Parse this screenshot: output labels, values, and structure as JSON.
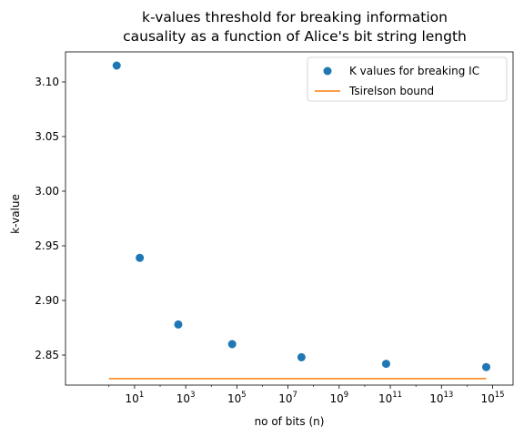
{
  "chart_data": {
    "type": "scatter",
    "title_lines": [
      "k-values threshold for breaking information",
      "causality as a function of Alice's bit string length"
    ],
    "xlabel": "no of bits (n)",
    "ylabel": "k-value",
    "xscale": "log10",
    "xlim_log10": [
      -1.7,
      15.8
    ],
    "ylim": [
      2.8225,
      3.1275
    ],
    "x_ticks": [
      {
        "base": "10",
        "exp": "1",
        "log10": 1
      },
      {
        "base": "10",
        "exp": "3",
        "log10": 3
      },
      {
        "base": "10",
        "exp": "5",
        "log10": 5
      },
      {
        "base": "10",
        "exp": "7",
        "log10": 7
      },
      {
        "base": "10",
        "exp": "9",
        "log10": 9
      },
      {
        "base": "10",
        "exp": "11",
        "log10": 11
      },
      {
        "base": "10",
        "exp": "13",
        "log10": 13
      },
      {
        "base": "10",
        "exp": "15",
        "log10": 15
      }
    ],
    "y_ticks": [
      "2.85",
      "2.90",
      "2.95",
      "3.00",
      "3.05",
      "3.10"
    ],
    "series": [
      {
        "name": "K values for breaking IC",
        "kind": "scatter",
        "color": "#1f77b4",
        "points": [
          {
            "x": 2,
            "y": 3.115
          },
          {
            "x": 16,
            "y": 2.939
          },
          {
            "x": 512,
            "y": 2.878
          },
          {
            "x": 65536,
            "y": 2.86
          },
          {
            "x": 33554432,
            "y": 2.848
          },
          {
            "x": 68719476736,
            "y": 2.842
          },
          {
            "x": 562949953421312,
            "y": 2.839
          }
        ]
      },
      {
        "name": "Tsirelson bound",
        "kind": "line",
        "color": "#ff7f0e",
        "x": [
          1,
          562949953421312
        ],
        "y": [
          2.8284,
          2.8284
        ]
      }
    ],
    "legend_position": "top-right",
    "grid": false
  }
}
